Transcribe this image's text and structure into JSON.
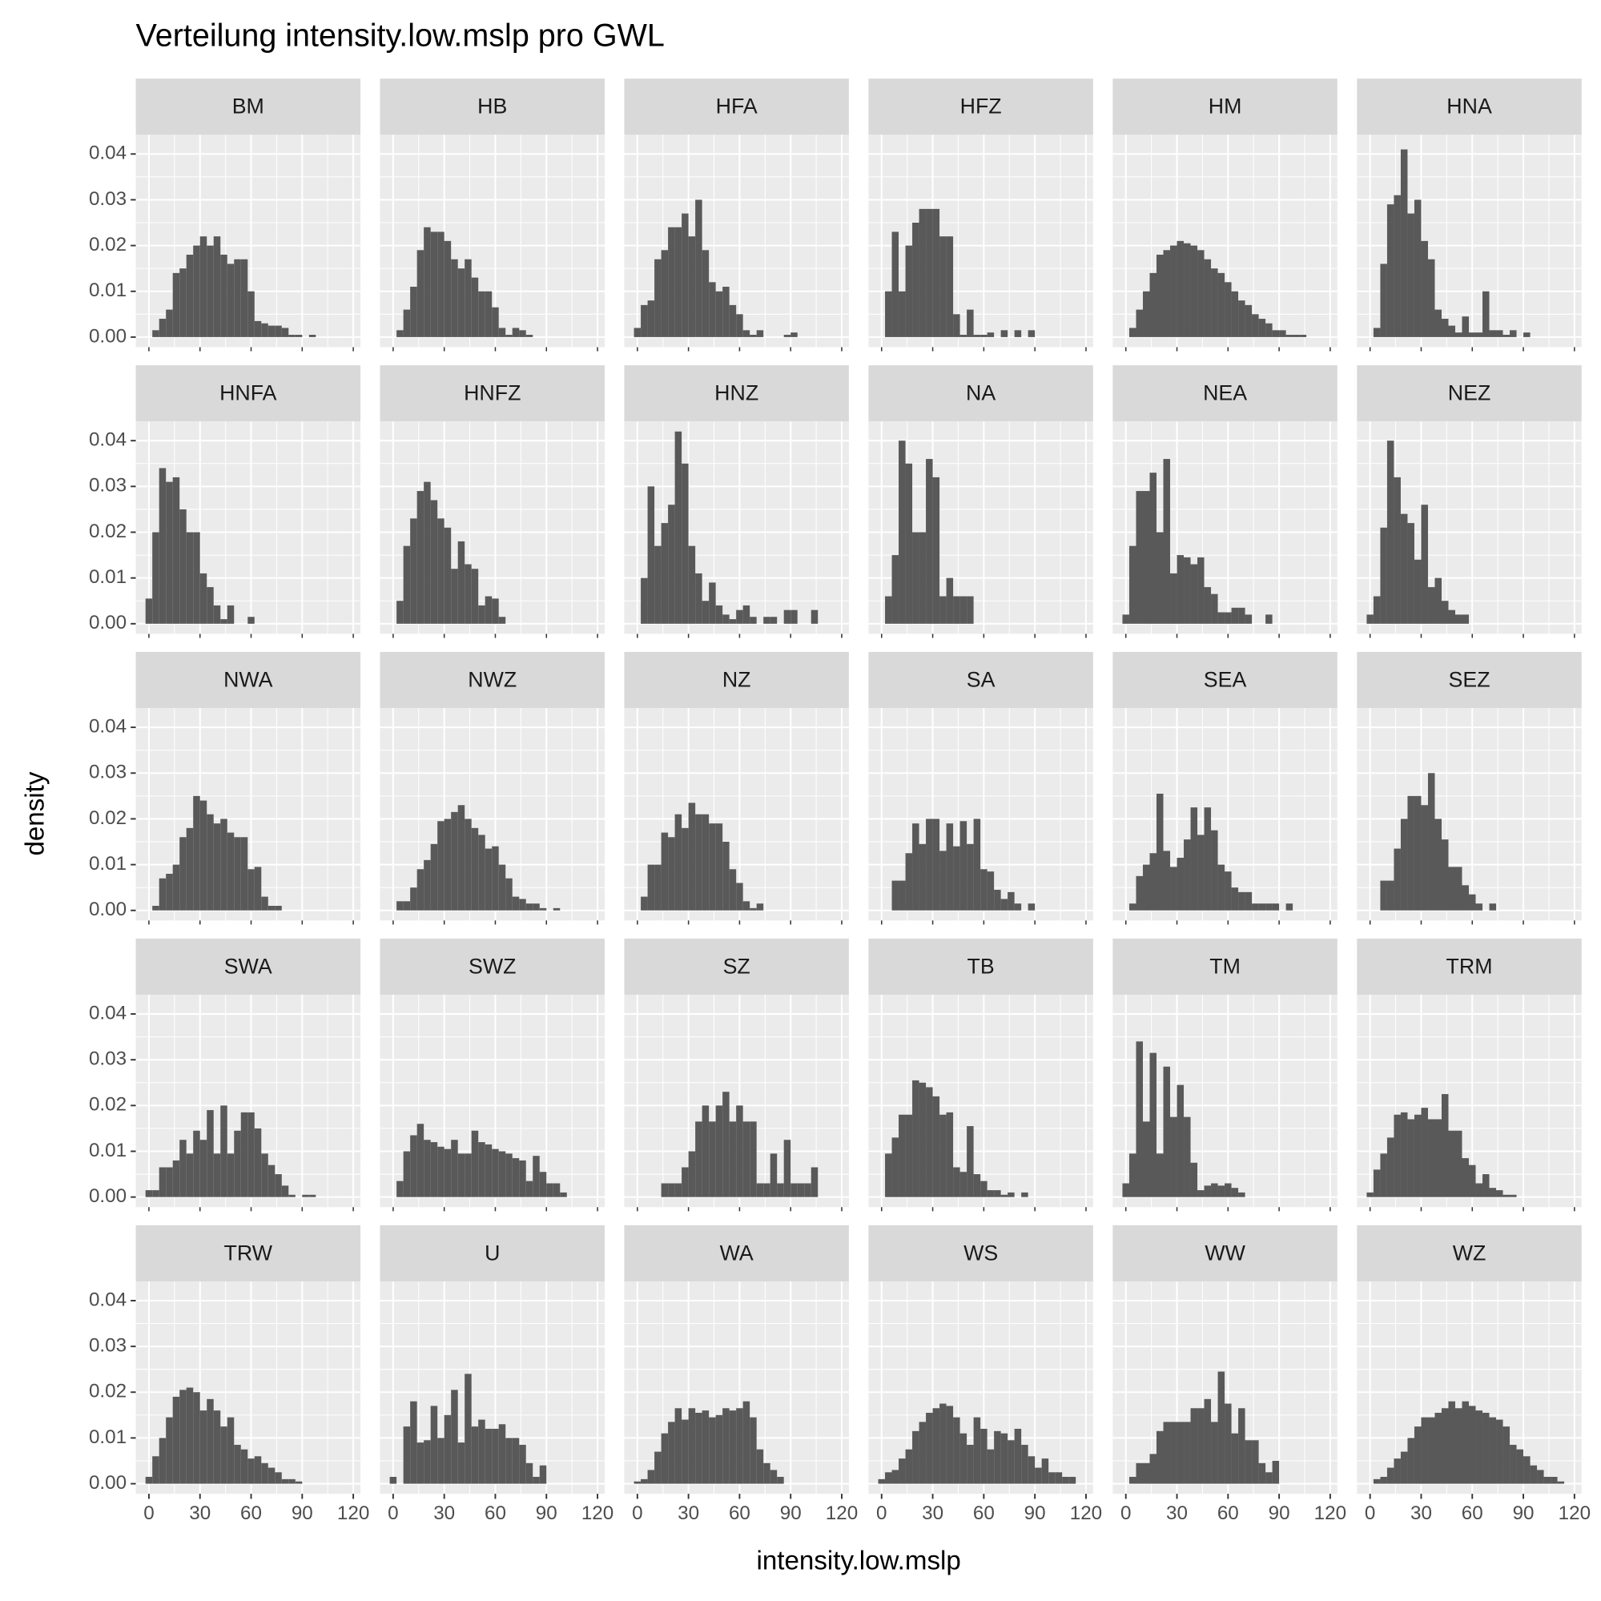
{
  "chart_data": {
    "type": "histogram",
    "title": "Verteilung intensity.low.mslp pro GWL",
    "x_label": "intensity.low.mslp",
    "y_label": "density",
    "color": "#595959",
    "grid": true,
    "xlim": [
      -7.7,
      124.2
    ],
    "ylim": [
      -0.0022,
      0.0442
    ],
    "xticks": [
      0,
      30,
      60,
      90,
      120
    ],
    "yticks": [
      {
        "value": 0,
        "label": "0.00"
      },
      {
        "value": 0.01,
        "label": "0.01"
      },
      {
        "value": 0.02,
        "label": "0.02"
      },
      {
        "value": 0.03,
        "label": "0.03"
      },
      {
        "value": 0.04,
        "label": "0.04"
      }
    ],
    "bins": [
      -2,
      2,
      6,
      10,
      14,
      18,
      22,
      26,
      30,
      34,
      38,
      42,
      46,
      50,
      54,
      58,
      62,
      66,
      70,
      74,
      78,
      82,
      86,
      90,
      94,
      98,
      102,
      106,
      110,
      114,
      118
    ],
    "panels": [
      {
        "name": "BM",
        "values": [
          0,
          0.0015,
          0.004,
          0.006,
          0.014,
          0.015,
          0.018,
          0.02,
          0.022,
          0.02,
          0.022,
          0.018,
          0.016,
          0.017,
          0.017,
          0.01,
          0.0035,
          0.003,
          0.0025,
          0.0025,
          0.002,
          0.0005,
          0.0005,
          0,
          0.0005,
          0,
          0,
          0,
          0,
          0
        ]
      },
      {
        "name": "HB",
        "values": [
          0,
          0.0015,
          0.006,
          0.011,
          0.019,
          0.024,
          0.023,
          0.023,
          0.021,
          0.017,
          0.015,
          0.017,
          0.013,
          0.01,
          0.01,
          0.0065,
          0.002,
          0.0005,
          0.002,
          0.0015,
          0.0005,
          0,
          0,
          0,
          0,
          0,
          0,
          0,
          0,
          0
        ]
      },
      {
        "name": "HFA",
        "values": [
          0.002,
          0.007,
          0.008,
          0.017,
          0.019,
          0.024,
          0.024,
          0.027,
          0.022,
          0.03,
          0.019,
          0.012,
          0.01,
          0.011,
          0.007,
          0.005,
          0.0015,
          0.0005,
          0.0015,
          0,
          0,
          0,
          0.0005,
          0.001,
          0,
          0,
          0,
          0,
          0,
          0
        ]
      },
      {
        "name": "HFZ",
        "values": [
          0,
          0.01,
          0.023,
          0.01,
          0.02,
          0.025,
          0.028,
          0.028,
          0.028,
          0.022,
          0.022,
          0.005,
          0.0005,
          0.006,
          0.0005,
          0.0005,
          0.001,
          0,
          0.0015,
          0,
          0.0015,
          0,
          0.0015,
          0,
          0,
          0,
          0,
          0,
          0,
          0
        ]
      },
      {
        "name": "HM",
        "values": [
          0,
          0.002,
          0.006,
          0.01,
          0.014,
          0.018,
          0.019,
          0.02,
          0.021,
          0.0205,
          0.02,
          0.019,
          0.017,
          0.015,
          0.014,
          0.012,
          0.01,
          0.008,
          0.007,
          0.005,
          0.004,
          0.003,
          0.0015,
          0.0015,
          0.0005,
          0.0005,
          0.0005,
          0,
          0,
          0
        ]
      },
      {
        "name": "HNA",
        "values": [
          0,
          0.002,
          0.016,
          0.029,
          0.031,
          0.041,
          0.027,
          0.03,
          0.021,
          0.017,
          0.006,
          0.004,
          0.0025,
          0.001,
          0.0045,
          0.001,
          0.001,
          0.01,
          0.0015,
          0.0015,
          0.0005,
          0.0015,
          0,
          0.001,
          0,
          0,
          0,
          0,
          0,
          0
        ]
      },
      {
        "name": "HNFA",
        "values": [
          0.0055,
          0.02,
          0.034,
          0.031,
          0.032,
          0.025,
          0.02,
          0.02,
          0.011,
          0.008,
          0.004,
          0.001,
          0.004,
          0,
          0,
          0.0015,
          0,
          0,
          0,
          0,
          0,
          0,
          0,
          0,
          0,
          0,
          0,
          0,
          0,
          0
        ]
      },
      {
        "name": "HNFZ",
        "values": [
          0,
          0.005,
          0.017,
          0.023,
          0.029,
          0.031,
          0.027,
          0.023,
          0.021,
          0.012,
          0.018,
          0.013,
          0.012,
          0.004,
          0.006,
          0.0055,
          0.0015,
          0,
          0,
          0,
          0,
          0,
          0,
          0,
          0,
          0,
          0,
          0,
          0,
          0
        ]
      },
      {
        "name": "HNZ",
        "values": [
          0,
          0.01,
          0.03,
          0.017,
          0.022,
          0.026,
          0.042,
          0.035,
          0.017,
          0.011,
          0.005,
          0.009,
          0.004,
          0.002,
          0.001,
          0.003,
          0.004,
          0.0015,
          0,
          0.0015,
          0.0015,
          0,
          0.003,
          0.003,
          0,
          0,
          0.003,
          0,
          0,
          0
        ]
      },
      {
        "name": "NA",
        "values": [
          0,
          0.006,
          0.015,
          0.04,
          0.035,
          0.02,
          0.02,
          0.036,
          0.032,
          0.006,
          0.01,
          0.006,
          0.006,
          0.006,
          0,
          0,
          0,
          0,
          0,
          0,
          0,
          0,
          0,
          0,
          0,
          0,
          0,
          0,
          0,
          0
        ]
      },
      {
        "name": "NEA",
        "values": [
          0.002,
          0.017,
          0.029,
          0.029,
          0.033,
          0.02,
          0.036,
          0.011,
          0.015,
          0.0145,
          0.013,
          0.0145,
          0.008,
          0.0065,
          0.0025,
          0.0025,
          0.0035,
          0.0035,
          0.002,
          0,
          0,
          0.002,
          0,
          0,
          0,
          0,
          0,
          0,
          0,
          0
        ]
      },
      {
        "name": "NEZ",
        "values": [
          0.002,
          0.006,
          0.021,
          0.04,
          0.032,
          0.024,
          0.022,
          0.014,
          0.026,
          0.008,
          0.01,
          0.005,
          0.003,
          0.002,
          0.002,
          0,
          0,
          0,
          0,
          0,
          0,
          0,
          0,
          0,
          0,
          0,
          0,
          0,
          0,
          0
        ]
      },
      {
        "name": "NWA",
        "values": [
          0,
          0.001,
          0.007,
          0.008,
          0.01,
          0.016,
          0.018,
          0.025,
          0.024,
          0.021,
          0.019,
          0.02,
          0.017,
          0.016,
          0.016,
          0.009,
          0.0095,
          0.003,
          0.001,
          0.001,
          0,
          0,
          0,
          0,
          0,
          0,
          0,
          0,
          0,
          0
        ]
      },
      {
        "name": "NWZ",
        "values": [
          0,
          0.002,
          0.002,
          0.005,
          0.009,
          0.011,
          0.0145,
          0.0195,
          0.02,
          0.0215,
          0.023,
          0.02,
          0.018,
          0.0165,
          0.0135,
          0.014,
          0.01,
          0.007,
          0.003,
          0.0025,
          0.0015,
          0.0015,
          0.0005,
          0,
          0.0005,
          0,
          0,
          0,
          0,
          0
        ]
      },
      {
        "name": "NZ",
        "values": [
          0,
          0.003,
          0.01,
          0.01,
          0.017,
          0.016,
          0.021,
          0.018,
          0.0235,
          0.021,
          0.021,
          0.019,
          0.019,
          0.015,
          0.009,
          0.006,
          0.002,
          0.0005,
          0.0015,
          0,
          0,
          0,
          0,
          0,
          0,
          0,
          0,
          0,
          0,
          0
        ]
      },
      {
        "name": "SA",
        "values": [
          0,
          0,
          0.0065,
          0.0065,
          0.0125,
          0.019,
          0.0145,
          0.02,
          0.02,
          0.013,
          0.019,
          0.014,
          0.0195,
          0.0145,
          0.02,
          0.009,
          0.0085,
          0.0045,
          0.0025,
          0.004,
          0.0015,
          0,
          0.0015,
          0,
          0,
          0,
          0,
          0,
          0,
          0
        ]
      },
      {
        "name": "SEA",
        "values": [
          0,
          0.0015,
          0.0075,
          0.01,
          0.0125,
          0.0255,
          0.013,
          0.0095,
          0.0115,
          0.0155,
          0.0225,
          0.0165,
          0.0225,
          0.0175,
          0.01,
          0.0085,
          0.005,
          0.004,
          0.004,
          0.0015,
          0.0015,
          0.0015,
          0.0015,
          0,
          0.0015,
          0,
          0,
          0,
          0,
          0
        ]
      },
      {
        "name": "SEZ",
        "values": [
          0,
          0,
          0.0065,
          0.0065,
          0.0135,
          0.02,
          0.025,
          0.025,
          0.023,
          0.03,
          0.02,
          0.0155,
          0.0095,
          0.0095,
          0.0055,
          0.0035,
          0.0015,
          0,
          0.0015,
          0,
          0,
          0,
          0,
          0,
          0,
          0,
          0,
          0,
          0,
          0
        ]
      },
      {
        "name": "SWA",
        "values": [
          0.0015,
          0.0015,
          0.0065,
          0.0065,
          0.008,
          0.0125,
          0.0095,
          0.0145,
          0.0125,
          0.019,
          0.0095,
          0.02,
          0.0095,
          0.0145,
          0.0185,
          0.0185,
          0.015,
          0.0095,
          0.007,
          0.005,
          0.0025,
          0.0005,
          0,
          0.0005,
          0.0005,
          0,
          0,
          0,
          0,
          0
        ]
      },
      {
        "name": "SWZ",
        "values": [
          0,
          0.0035,
          0.01,
          0.0135,
          0.016,
          0.0125,
          0.012,
          0.011,
          0.0105,
          0.0125,
          0.0095,
          0.0095,
          0.0145,
          0.012,
          0.0115,
          0.0105,
          0.01,
          0.0095,
          0.0085,
          0.008,
          0.0035,
          0.009,
          0.0055,
          0.003,
          0.003,
          0.001,
          0,
          0,
          0,
          0
        ]
      },
      {
        "name": "SZ",
        "values": [
          0,
          0,
          0,
          0,
          0.003,
          0.003,
          0.003,
          0.0065,
          0.01,
          0.0165,
          0.02,
          0.0165,
          0.02,
          0.023,
          0.0165,
          0.02,
          0.0165,
          0.0165,
          0.003,
          0.003,
          0.0095,
          0.003,
          0.0125,
          0.003,
          0.003,
          0.003,
          0.0065,
          0,
          0,
          0
        ]
      },
      {
        "name": "TB",
        "values": [
          0,
          0.0095,
          0.013,
          0.018,
          0.018,
          0.0255,
          0.025,
          0.024,
          0.022,
          0.018,
          0.0185,
          0.0065,
          0.0055,
          0.0155,
          0.005,
          0.0035,
          0.0015,
          0.0015,
          0.0005,
          0.001,
          0,
          0.001,
          0,
          0,
          0,
          0,
          0,
          0,
          0,
          0
        ]
      },
      {
        "name": "TM",
        "values": [
          0.003,
          0.0095,
          0.034,
          0.0165,
          0.0315,
          0.0095,
          0.0285,
          0.0175,
          0.0245,
          0.0175,
          0.0075,
          0.0015,
          0.0025,
          0.003,
          0.0025,
          0.003,
          0.002,
          0.001,
          0,
          0,
          0,
          0,
          0,
          0,
          0,
          0,
          0,
          0,
          0,
          0
        ]
      },
      {
        "name": "TRM",
        "values": [
          0.001,
          0.006,
          0.0095,
          0.013,
          0.018,
          0.0185,
          0.017,
          0.018,
          0.0195,
          0.017,
          0.017,
          0.0225,
          0.0145,
          0.0145,
          0.0085,
          0.007,
          0.003,
          0.005,
          0.002,
          0.0015,
          0.0005,
          0.0005,
          0,
          0,
          0,
          0,
          0,
          0,
          0,
          0
        ]
      },
      {
        "name": "TRW",
        "values": [
          0.0015,
          0.006,
          0.01,
          0.0145,
          0.019,
          0.0205,
          0.021,
          0.02,
          0.016,
          0.0185,
          0.016,
          0.0125,
          0.0145,
          0.0085,
          0.0075,
          0.0055,
          0.006,
          0.0045,
          0.0035,
          0.0025,
          0.001,
          0.001,
          0.0005,
          0,
          0,
          0,
          0,
          0,
          0,
          0
        ]
      },
      {
        "name": "U",
        "values": [
          0.0015,
          0,
          0.0125,
          0.018,
          0.009,
          0.0095,
          0.017,
          0.01,
          0.015,
          0.0205,
          0.009,
          0.024,
          0.0125,
          0.014,
          0.012,
          0.012,
          0.013,
          0.01,
          0.01,
          0.0085,
          0.0045,
          0.0015,
          0.004,
          0,
          0,
          0,
          0,
          0,
          0,
          0
        ]
      },
      {
        "name": "WA",
        "values": [
          0.0005,
          0.001,
          0.003,
          0.007,
          0.011,
          0.0135,
          0.0165,
          0.014,
          0.0165,
          0.0155,
          0.016,
          0.0145,
          0.015,
          0.0165,
          0.016,
          0.0165,
          0.018,
          0.0145,
          0.0075,
          0.0045,
          0.003,
          0.0015,
          0,
          0,
          0,
          0,
          0,
          0,
          0,
          0
        ]
      },
      {
        "name": "WS",
        "values": [
          0.001,
          0.0025,
          0.003,
          0.0055,
          0.0075,
          0.0115,
          0.0135,
          0.0155,
          0.0165,
          0.0175,
          0.017,
          0.0145,
          0.011,
          0.0085,
          0.0145,
          0.012,
          0.0075,
          0.0115,
          0.011,
          0.0095,
          0.012,
          0.0085,
          0.006,
          0.0035,
          0.0055,
          0.0025,
          0.0025,
          0.0015,
          0.0015,
          0
        ]
      },
      {
        "name": "WW",
        "values": [
          0,
          0.0015,
          0.0045,
          0.0045,
          0.0065,
          0.0115,
          0.0135,
          0.0135,
          0.0135,
          0.0135,
          0.0165,
          0.0165,
          0.0185,
          0.0135,
          0.0245,
          0.0175,
          0.011,
          0.0165,
          0.0095,
          0.0095,
          0.0045,
          0.0025,
          0.005,
          0,
          0,
          0,
          0,
          0,
          0,
          0
        ]
      },
      {
        "name": "WZ",
        "values": [
          0,
          0.001,
          0.0015,
          0.0035,
          0.0055,
          0.007,
          0.01,
          0.0125,
          0.0145,
          0.0145,
          0.0155,
          0.0165,
          0.018,
          0.0165,
          0.018,
          0.017,
          0.016,
          0.0155,
          0.0145,
          0.014,
          0.0125,
          0.0085,
          0.0075,
          0.006,
          0.004,
          0.003,
          0.0015,
          0.0015,
          0.0005,
          0
        ]
      }
    ]
  }
}
